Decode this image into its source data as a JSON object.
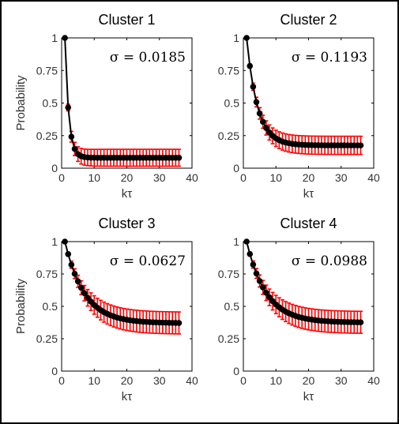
{
  "chart_data": [
    {
      "type": "line",
      "title": "Cluster 1",
      "annotation": "σ = 0.0185",
      "xlabel": "kτ",
      "ylabel": "Probability",
      "xlim": [
        0,
        40
      ],
      "ylim": [
        0,
        1
      ],
      "xticks": [
        "0",
        "10",
        "20",
        "30",
        "40"
      ],
      "yticks": [
        "0",
        "0.25",
        "0.5",
        "0.75",
        "1"
      ],
      "x_range": [
        1,
        36
      ],
      "series": [
        {
          "start": 1.0,
          "floor": 0.08,
          "decay": 1.15,
          "err": 0.065,
          "errgrow": 2.0
        }
      ],
      "colors": {
        "line": "#000000",
        "error": "#ff0000"
      }
    },
    {
      "type": "line",
      "title": "Cluster 2",
      "annotation": "σ = 0.1193",
      "xlabel": "kτ",
      "ylabel": "",
      "xlim": [
        0,
        40
      ],
      "ylim": [
        0,
        1
      ],
      "xticks": [
        "0",
        "10",
        "20",
        "30",
        "40"
      ],
      "yticks": [
        "0",
        "0.25",
        "0.5",
        "0.75",
        "1"
      ],
      "x_range": [
        1,
        36
      ],
      "series": [
        {
          "start": 1.0,
          "floor": 0.175,
          "decay": 3.3,
          "err": 0.07,
          "errgrow": 4.0
        }
      ],
      "colors": {
        "line": "#000000",
        "error": "#ff0000"
      }
    },
    {
      "type": "line",
      "title": "Cluster 3",
      "annotation": "σ = 0.0627",
      "xlabel": "kτ",
      "ylabel": "Probability",
      "xlim": [
        0,
        40
      ],
      "ylim": [
        0,
        1
      ],
      "xticks": [
        "0",
        "10",
        "20",
        "30",
        "40"
      ],
      "yticks": [
        "0",
        "0.25",
        "0.5",
        "0.75",
        "1"
      ],
      "x_range": [
        1,
        36
      ],
      "series": [
        {
          "start": 1.0,
          "floor": 0.37,
          "decay": 6.0,
          "err": 0.085,
          "errgrow": 5.0
        }
      ],
      "colors": {
        "line": "#000000",
        "error": "#ff0000"
      }
    },
    {
      "type": "line",
      "title": "Cluster 4",
      "annotation": "σ = 0.0988",
      "xlabel": "kτ",
      "ylabel": "",
      "xlim": [
        0,
        40
      ],
      "ylim": [
        0,
        1
      ],
      "xticks": [
        "0",
        "10",
        "20",
        "30",
        "40"
      ],
      "yticks": [
        "0",
        "0.25",
        "0.5",
        "0.75",
        "1"
      ],
      "x_range": [
        1,
        36
      ],
      "series": [
        {
          "start": 1.0,
          "floor": 0.375,
          "decay": 6.0,
          "err": 0.085,
          "errgrow": 5.0
        }
      ],
      "colors": {
        "line": "#000000",
        "error": "#ff0000"
      }
    }
  ]
}
